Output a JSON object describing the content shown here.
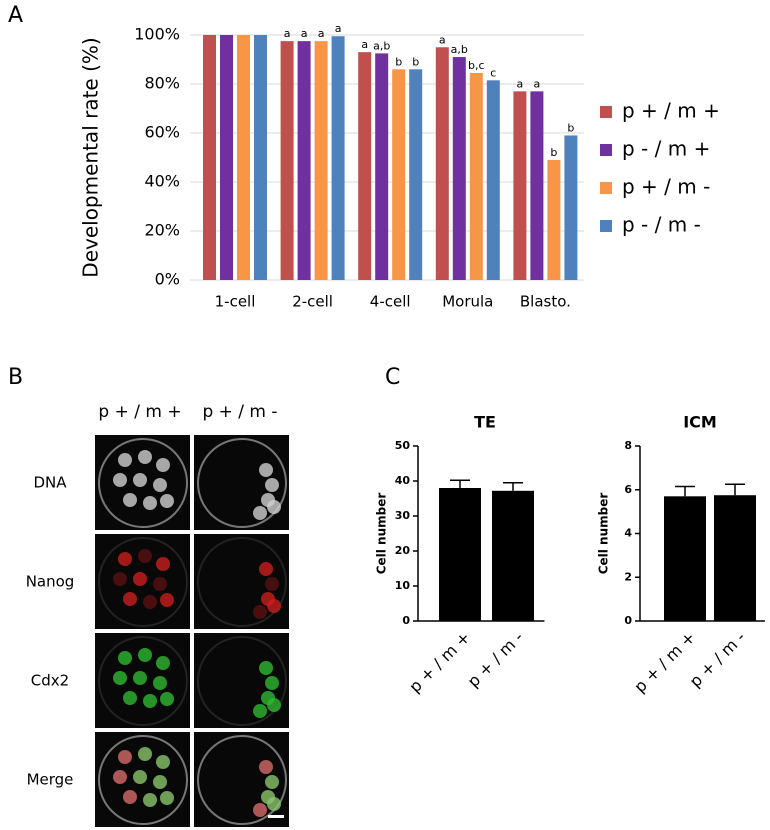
{
  "panel_labels": [
    "A",
    "B",
    "C"
  ],
  "image_panel": {
    "columns": [
      "p + / m +",
      "p + / m -"
    ],
    "rows": [
      "DNA",
      "Nanog",
      "Cdx2",
      "Merge"
    ]
  },
  "chart_data": [
    {
      "type": "bar",
      "ylabel": "Developmental rate (%)",
      "categories": [
        "1-cell",
        "2-cell",
        "4-cell",
        "Morula",
        "Blasto."
      ],
      "series": [
        {
          "name": "p + / m +",
          "color": "#c0504d",
          "values": [
            100,
            97.5,
            93,
            95,
            77
          ],
          "annotations": [
            null,
            "a",
            "a",
            "a",
            "a"
          ]
        },
        {
          "name": "p - / m +",
          "color": "#7030a0",
          "values": [
            100,
            97.5,
            92.5,
            91,
            77
          ],
          "annotations": [
            null,
            "a",
            "a,b",
            "a,b",
            "a"
          ]
        },
        {
          "name": "p + / m -",
          "color": "#f79646",
          "values": [
            100,
            97.5,
            86,
            84.5,
            49
          ],
          "annotations": [
            null,
            "a",
            "b",
            "b,c",
            "b"
          ]
        },
        {
          "name": "p - / m -",
          "color": "#4f81bd",
          "values": [
            100,
            99.5,
            86,
            81.5,
            59
          ],
          "annotations": [
            null,
            "a",
            "b",
            "c",
            "b"
          ]
        }
      ],
      "ylim": [
        0,
        100
      ],
      "yticks": [
        {
          "value": 0,
          "label": "0%"
        },
        {
          "value": 20,
          "label": "20%"
        },
        {
          "value": 40,
          "label": "40%"
        },
        {
          "value": 60,
          "label": "60%"
        },
        {
          "value": 80,
          "label": "80%"
        },
        {
          "value": 100,
          "label": "100%"
        }
      ],
      "grid": true,
      "legend": "right"
    },
    {
      "type": "bar",
      "title": "TE",
      "ylabel": "Cell number",
      "categories": [
        "p + / m +",
        "p + / m -"
      ],
      "values": [
        38,
        37.2
      ],
      "errors": [
        2.2,
        2.3
      ],
      "color": "#000000",
      "ylim": [
        0,
        50
      ],
      "yticks": [
        0,
        10,
        20,
        30,
        40,
        50
      ],
      "grid": false
    },
    {
      "type": "bar",
      "title": "ICM",
      "ylabel": "Cell number",
      "categories": [
        "p + / m +",
        "p + / m -"
      ],
      "values": [
        5.7,
        5.75
      ],
      "errors": [
        0.45,
        0.5
      ],
      "color": "#000000",
      "ylim": [
        0,
        8
      ],
      "yticks": [
        0,
        2,
        4,
        6,
        8
      ],
      "grid": false
    }
  ]
}
